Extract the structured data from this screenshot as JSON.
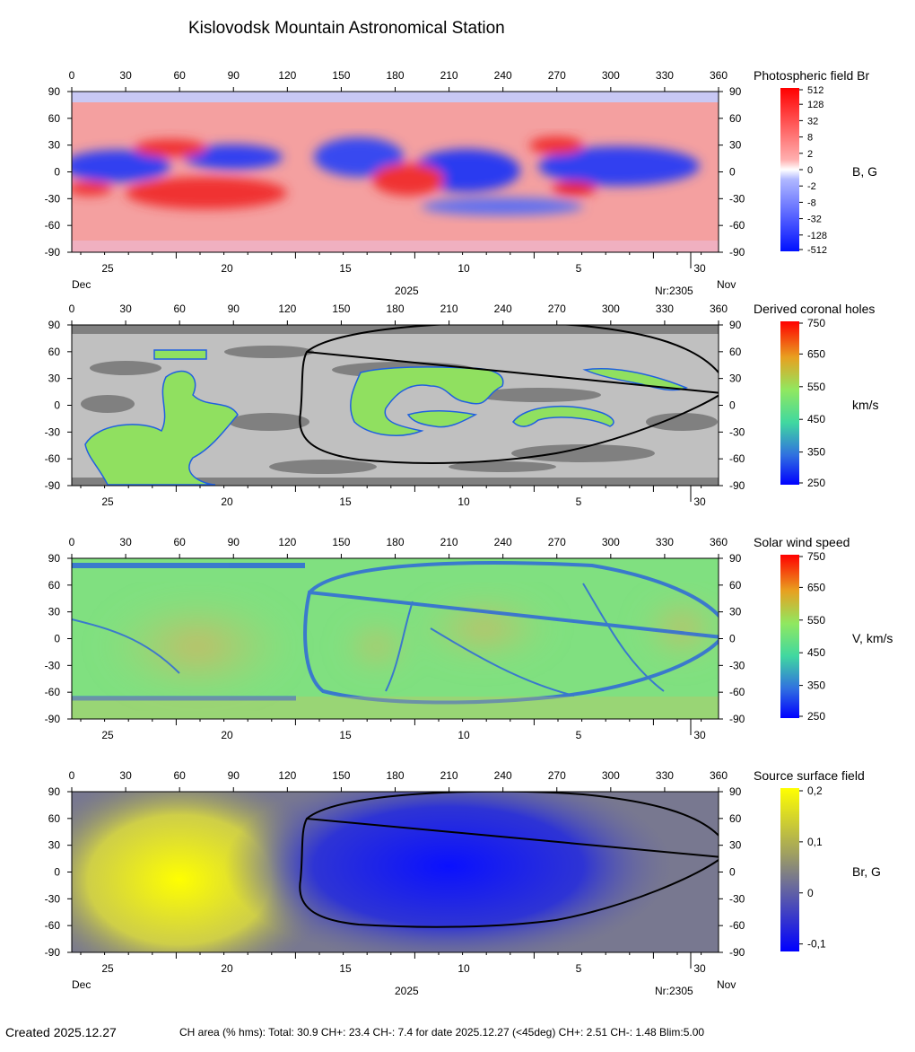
{
  "title": "Kislovodsk Mountain Astronomical Station",
  "footer": {
    "created": "Created  2025.12.27",
    "stats": "CH area (% hms): Total: 30.9 CH+: 23.4   CH-: 7.4 for date 2025.12.27 (<45deg) CH+: 2.51    CH-: 1.48 Blim:5.00"
  },
  "colors": {
    "field_positive": "#ff3030",
    "field_negative": "#2030ff",
    "ch_background_light": "#c0c0c0",
    "ch_background_dark": "#808080",
    "source_positive": "#ffff00",
    "source_negative": "#1010ff",
    "neutral_line": "#000000"
  },
  "chart_data": [
    {
      "type": "heatmap",
      "id": "photospheric",
      "title": "Photospheric field Br",
      "colorbar_unit": "B, G",
      "colorbar_ticks": [
        "512",
        "128",
        "32",
        "8",
        "2",
        "0",
        "-2",
        "-8",
        "-32",
        "-128",
        "-512"
      ],
      "x_top_ticks": [
        "0",
        "30",
        "60",
        "90",
        "120",
        "150",
        "180",
        "210",
        "240",
        "270",
        "300",
        "330",
        "360"
      ],
      "y_ticks": [
        "90",
        "60",
        "30",
        "0",
        "-30",
        "-60",
        "-90"
      ],
      "date_ticks": [
        "25",
        "20",
        "15",
        "10",
        "5",
        "30"
      ],
      "xlim": [
        0,
        360
      ],
      "ylim": [
        -90,
        90
      ],
      "month_left": "Dec",
      "month_right": "Nov",
      "year": "2025",
      "rotation": "Nr:2305"
    },
    {
      "type": "heatmap",
      "id": "coronal_holes",
      "title": "Derived coronal holes",
      "colorbar_unit": "km/s",
      "colorbar_ticks": [
        "750",
        "650",
        "550",
        "450",
        "350",
        "250"
      ],
      "x_top_ticks": [
        "0",
        "30",
        "60",
        "90",
        "120",
        "150",
        "180",
        "210",
        "240",
        "270",
        "300",
        "330",
        "360"
      ],
      "y_ticks": [
        "90",
        "60",
        "30",
        "0",
        "-30",
        "-60",
        "-90"
      ],
      "date_ticks": [
        "25",
        "20",
        "15",
        "10",
        "5",
        "30"
      ],
      "xlim": [
        0,
        360
      ],
      "ylim": [
        -90,
        90
      ]
    },
    {
      "type": "heatmap",
      "id": "solar_wind",
      "title": "Solar wind speed",
      "colorbar_unit": "V, km/s",
      "colorbar_ticks": [
        "750",
        "650",
        "550",
        "450",
        "350",
        "250"
      ],
      "x_top_ticks": [
        "0",
        "30",
        "60",
        "90",
        "120",
        "150",
        "180",
        "210",
        "240",
        "270",
        "300",
        "330",
        "360"
      ],
      "y_ticks": [
        "90",
        "60",
        "30",
        "0",
        "-30",
        "-60",
        "-90"
      ],
      "date_ticks": [
        "25",
        "20",
        "15",
        "10",
        "5",
        "30"
      ],
      "xlim": [
        0,
        360
      ],
      "ylim": [
        -90,
        90
      ]
    },
    {
      "type": "heatmap",
      "id": "source_surface",
      "title": "Source surface field",
      "colorbar_unit": "Br, G",
      "colorbar_ticks": [
        "0,2",
        "0,1",
        "0",
        "-0,1"
      ],
      "x_top_ticks": [
        "0",
        "30",
        "60",
        "90",
        "120",
        "150",
        "180",
        "210",
        "240",
        "270",
        "300",
        "330",
        "360"
      ],
      "y_ticks": [
        "90",
        "60",
        "30",
        "0",
        "-30",
        "-60",
        "-90"
      ],
      "date_ticks": [
        "25",
        "20",
        "15",
        "10",
        "5",
        "30"
      ],
      "xlim": [
        0,
        360
      ],
      "ylim": [
        -90,
        90
      ],
      "month_left": "Dec",
      "month_right": "Nov",
      "year": "2025",
      "rotation": "Nr:2305"
    }
  ]
}
